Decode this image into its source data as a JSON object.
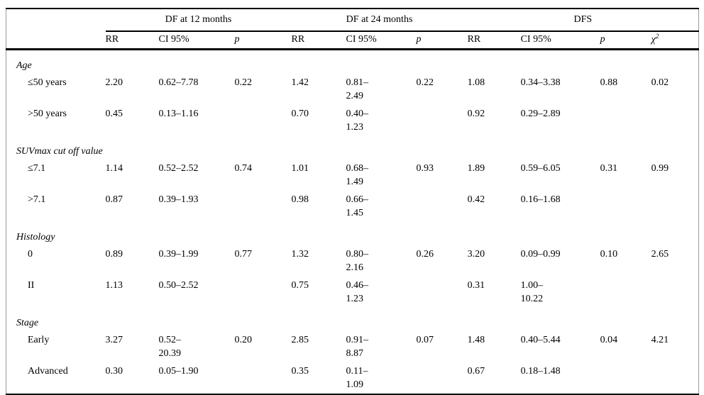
{
  "colors": {
    "background": "#ffffff",
    "text": "#000000",
    "horizontal_rule": "#000000",
    "side_rule": "#9c9c9c"
  },
  "table": {
    "stub_header": "",
    "col_groups": [
      {
        "label": "DF at 12 months",
        "span": 3
      },
      {
        "label": "DF at 24 months",
        "span": 3
      },
      {
        "label": "DFS",
        "span": 4
      }
    ],
    "sub_headers": [
      "RR",
      "CI 95%",
      "p",
      "RR",
      "CI 95%",
      "p",
      "RR",
      "CI 95%",
      "p"
    ],
    "chi_header": {
      "base": "χ",
      "sup": "2"
    },
    "sections": [
      {
        "label": "Age",
        "rows": [
          {
            "label": "≤50 years",
            "cells": [
              "2.20",
              "0.62–7.78",
              "0.22",
              "1.42",
              "0.81–\n2.49",
              "0.22",
              "1.08",
              "0.34–3.38",
              "0.88",
              "0.02"
            ]
          },
          {
            "label": ">50 years",
            "cells": [
              "0.45",
              "0.13–1.16",
              "",
              "0.70",
              "0.40–\n1.23",
              "",
              "0.92",
              "0.29–2.89",
              "",
              ""
            ]
          }
        ]
      },
      {
        "label": "SUVmax cut off value",
        "rows": [
          {
            "label": "≤7.1",
            "cells": [
              "1.14",
              "0.52–2.52",
              "0.74",
              "1.01",
              "0.68–\n1.49",
              "0.93",
              "1.89",
              "0.59–6.05",
              "0.31",
              "0.99"
            ]
          },
          {
            "label": ">7.1",
            "cells": [
              "0.87",
              "0.39–1.93",
              "",
              "0.98",
              "0.66–\n1.45",
              "",
              "0.42",
              "0.16–1.68",
              "",
              ""
            ]
          }
        ]
      },
      {
        "label": "Histology",
        "rows": [
          {
            "label": "0",
            "cells": [
              "0.89",
              "0.39–1.99",
              "0.77",
              "1.32",
              "0.80–\n2.16",
              "0.26",
              "3.20",
              "0.09–0.99",
              "0.10",
              "2.65"
            ]
          },
          {
            "label": "II",
            "cells": [
              "1.13",
              "0.50–2.52",
              "",
              "0.75",
              "0.46–\n1.23",
              "",
              "0.31",
              "1.00–\n10.22",
              "",
              ""
            ]
          }
        ]
      },
      {
        "label": "Stage",
        "rows": [
          {
            "label": "Early",
            "cells": [
              "3.27",
              "0.52–\n20.39",
              "0.20",
              "2.85",
              "0.91–\n8.87",
              "0.07",
              "1.48",
              "0.40–5.44",
              "0.04",
              "4.21"
            ]
          },
          {
            "label": "Advanced",
            "cells": [
              "0.30",
              "0.05–1.90",
              "",
              "0.35",
              "0.11–\n1.09",
              "",
              "0.67",
              "0.18–1.48",
              "",
              ""
            ]
          }
        ]
      }
    ]
  }
}
